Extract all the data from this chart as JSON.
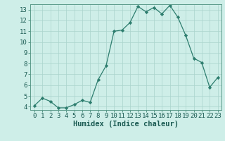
{
  "x": [
    0,
    1,
    2,
    3,
    4,
    5,
    6,
    7,
    8,
    9,
    10,
    11,
    12,
    13,
    14,
    15,
    16,
    17,
    18,
    19,
    20,
    21,
    22,
    23
  ],
  "y": [
    4.1,
    4.8,
    4.5,
    3.9,
    3.9,
    4.2,
    4.6,
    4.4,
    6.5,
    7.8,
    11.0,
    11.1,
    11.8,
    13.3,
    12.8,
    13.2,
    12.6,
    13.4,
    12.3,
    10.6,
    8.5,
    8.1,
    5.8,
    6.7
  ],
  "line_color": "#2d7d6e",
  "marker_color": "#2d7d6e",
  "bg_color": "#ceeee8",
  "grid_color": "#aad4cc",
  "xlabel": "Humidex (Indice chaleur)",
  "ylim_min": 3.7,
  "ylim_max": 13.5,
  "xlim_min": -0.5,
  "xlim_max": 23.5,
  "yticks": [
    4,
    5,
    6,
    7,
    8,
    9,
    10,
    11,
    12,
    13
  ],
  "xticks": [
    0,
    1,
    2,
    3,
    4,
    5,
    6,
    7,
    8,
    9,
    10,
    11,
    12,
    13,
    14,
    15,
    16,
    17,
    18,
    19,
    20,
    21,
    22,
    23
  ],
  "xlabel_fontsize": 7.5,
  "tick_fontsize": 6.5,
  "text_color": "#1a5a52"
}
